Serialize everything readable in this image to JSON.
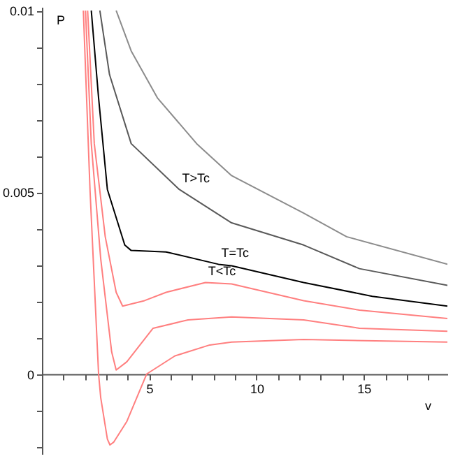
{
  "chart_data": {
    "type": "line",
    "xlabel": "v",
    "ylabel": "P",
    "xlim": [
      0,
      18.9
    ],
    "ylim": [
      -0.0022,
      0.0101
    ],
    "xticks": [
      {
        "value": 1,
        "label": null
      },
      {
        "value": 2,
        "label": null
      },
      {
        "value": 3,
        "label": null
      },
      {
        "value": 4,
        "label": null
      },
      5,
      {
        "value": 6,
        "label": null
      },
      {
        "value": 7,
        "label": null
      },
      {
        "value": 8,
        "label": null
      },
      {
        "value": 9,
        "label": null
      },
      10,
      {
        "value": 11,
        "label": null
      },
      {
        "value": 12,
        "label": null
      },
      {
        "value": 13,
        "label": null
      },
      {
        "value": 14,
        "label": null
      },
      15,
      {
        "value": 16,
        "label": null
      },
      {
        "value": 17,
        "label": null
      },
      {
        "value": 18,
        "label": null
      }
    ],
    "yticks": [
      {
        "value": -0.002,
        "label": null
      },
      {
        "value": -0.001,
        "label": null
      },
      0,
      {
        "value": 0.001,
        "label": null
      },
      {
        "value": 0.002,
        "label": null
      },
      {
        "value": 0.003,
        "label": null
      },
      {
        "value": 0.004,
        "label": null
      },
      0.005,
      {
        "value": 0.006,
        "label": null
      },
      {
        "value": 0.007,
        "label": null
      },
      {
        "value": 0.008,
        "label": null
      },
      {
        "value": 0.009,
        "label": null
      },
      0.01
    ],
    "series": [
      {
        "color": "#8c8c8c",
        "x": [
          3.46,
          4.16,
          5.38,
          7.21,
          8.84,
          12.2,
          14.2,
          18.9
        ],
        "values": [
          0.01,
          0.00889,
          0.0076,
          0.00634,
          0.00546,
          0.00443,
          0.00378,
          0.00302
        ]
      },
      {
        "name": "T>Tc",
        "color": "#595959",
        "x": [
          2.7,
          3.15,
          4.16,
          6.4,
          8.84,
          12.2,
          14.8,
          18.9
        ],
        "values": [
          0.01,
          0.00824,
          0.00634,
          0.00508,
          0.00416,
          0.00355,
          0.0029,
          0.00244
        ]
      },
      {
        "name": "T=Tc",
        "color": "#000000",
        "x": [
          2.3,
          2.64,
          3.05,
          3.86,
          4.16,
          5.79,
          8.23,
          8.84,
          12.2,
          15.4,
          18.9
        ],
        "values": [
          0.01,
          0.0076,
          0.00508,
          0.00355,
          0.0034,
          0.00336,
          0.00302,
          0.00298,
          0.00252,
          0.00214,
          0.00187
        ]
      },
      {
        "name": "T<Tc",
        "color": "#ff7f7f",
        "x": [
          2.13,
          2.44,
          2.95,
          3.46,
          3.76,
          4.78,
          5.79,
          7.62,
          8.84,
          12.2,
          14.8,
          18.9
        ],
        "values": [
          0.01,
          0.00634,
          0.00378,
          0.00225,
          0.00187,
          0.00202,
          0.00225,
          0.00252,
          0.00248,
          0.00202,
          0.00176,
          0.00153
        ]
      },
      {
        "color": "#ff7f7f",
        "x": [
          2.03,
          2.3,
          2.74,
          3.25,
          3.46,
          3.96,
          5.18,
          6.81,
          8.84,
          12.2,
          14.8,
          18.9
        ],
        "values": [
          0.01,
          0.00634,
          0.00317,
          0.00061,
          0.00011,
          0.00034,
          0.00126,
          0.00149,
          0.00157,
          0.00149,
          0.00126,
          0.00118
        ]
      },
      {
        "color": "#ff7f7f",
        "x": [
          1.93,
          2.24,
          2.64,
          2.74,
          3.05,
          3.17,
          3.35,
          3.96,
          4.88,
          6.2,
          7.82,
          8.84,
          12.2,
          18.9
        ],
        "values": [
          0.01,
          0.00508,
          0.0,
          -0.00065,
          -0.00179,
          -0.00195,
          -0.00187,
          -0.0013,
          0.0,
          0.0005,
          0.0008,
          0.00088,
          0.00095,
          0.00088
        ]
      }
    ]
  }
}
